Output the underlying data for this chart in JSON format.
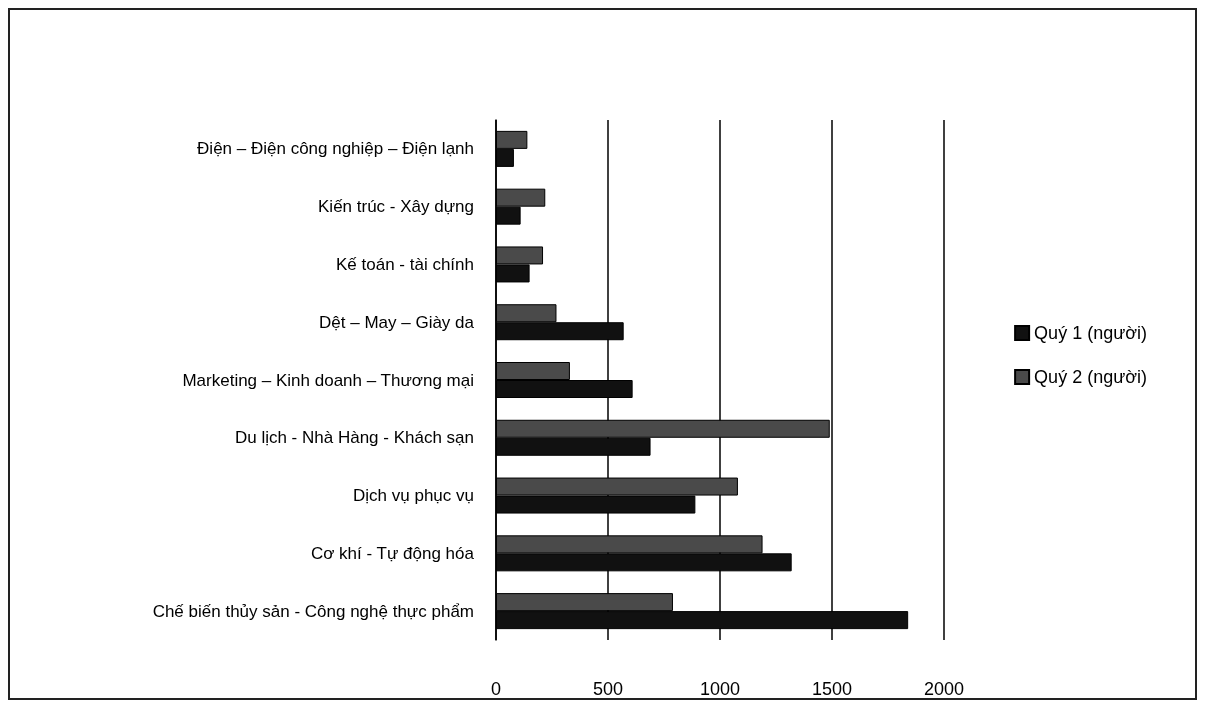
{
  "chart_data": {
    "type": "bar",
    "orientation": "horizontal",
    "categories": [
      "Điện – Điện công nghiệp – Điện lạnh",
      "Kiến trúc - Xây dựng",
      "Kế toán - tài chính",
      "Dệt – May – Giày da",
      "Marketing – Kinh doanh – Thương mại",
      "Du lịch - Nhà Hàng - Khách sạn",
      "Dịch vụ phục vụ",
      "Cơ khí - Tự động hóa",
      "Chế biến thủy sản - Công nghệ thực phẩm"
    ],
    "series": [
      {
        "name": "Quý 1 (người)",
        "color": "#111111",
        "values": [
          80,
          110,
          150,
          570,
          610,
          690,
          890,
          1320,
          1840
        ]
      },
      {
        "name": "Quý 2 (người)",
        "color": "#4a4a4a",
        "values": [
          140,
          220,
          210,
          270,
          330,
          1490,
          1080,
          1190,
          790
        ]
      }
    ],
    "xlim": [
      0,
      2000
    ],
    "xticks": [
      0,
      500,
      1000,
      1500,
      2000
    ],
    "grid": "x",
    "legend": "right"
  }
}
